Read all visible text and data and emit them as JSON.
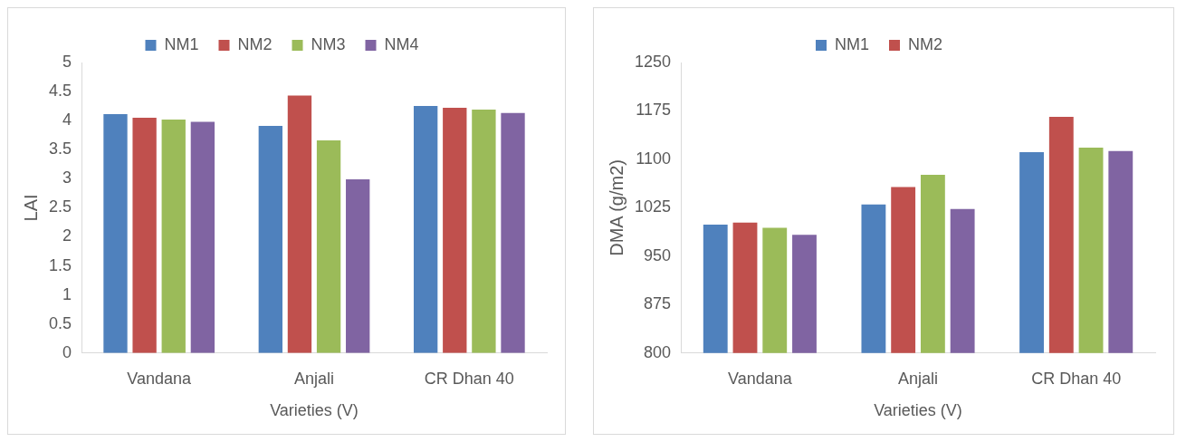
{
  "chart_data": [
    {
      "type": "bar",
      "categories": [
        "Vandana",
        "Anjali",
        "CR Dhan 40"
      ],
      "xlabel": "Varieties (V)",
      "ylabel": "LAI",
      "ylim": [
        0,
        5
      ],
      "yticks": [
        0,
        0.5,
        1,
        1.5,
        2,
        2.5,
        3,
        3.5,
        4,
        4.5,
        5
      ],
      "grid": false,
      "legend": "top",
      "series": [
        {
          "name": "NM1",
          "color": "#4f81bd",
          "values": [
            4.11,
            3.91,
            4.25
          ]
        },
        {
          "name": "NM2",
          "color": "#c0504d",
          "values": [
            4.05,
            4.43,
            4.22
          ]
        },
        {
          "name": "NM3",
          "color": "#9bbb59",
          "values": [
            4.02,
            3.66,
            4.19
          ]
        },
        {
          "name": "NM4",
          "color": "#8064a2",
          "values": [
            3.98,
            2.99,
            4.13
          ]
        }
      ]
    },
    {
      "type": "bar",
      "categories": [
        "Vandana",
        "Anjali",
        "CR Dhan 40"
      ],
      "xlabel": "Varieties (V)",
      "ylabel": "DMA (g/m2)",
      "ylim": [
        800,
        1250
      ],
      "yticks": [
        800,
        875,
        950,
        1025,
        1100,
        1175,
        1250
      ],
      "grid": false,
      "legend": "top",
      "series": [
        {
          "name": "NM1",
          "color": "#4f81bd",
          "values": [
            999,
            1030,
            1111
          ]
        },
        {
          "name": "NM2",
          "color": "#c0504d",
          "values": [
            1002,
            1057,
            1166
          ]
        },
        {
          "color": "#9bbb59",
          "values": [
            994,
            1076,
            1118
          ]
        },
        {
          "color": "#8064a2",
          "values": [
            983,
            1023,
            1113
          ]
        }
      ]
    }
  ]
}
